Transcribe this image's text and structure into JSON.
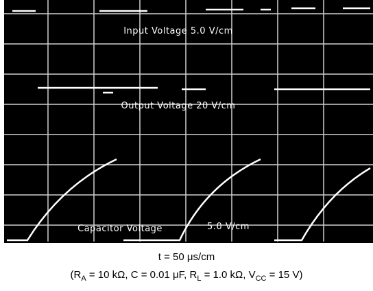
{
  "scope": {
    "labels": {
      "input": "Input Voltage 5.0 V/cm",
      "output": "Output Voltage 20 V/cm",
      "capacitor": "Capacitor Voltage",
      "capacitor_scale": "5.0 V/cm"
    }
  },
  "caption": {
    "line1": "t = 50 μs/cm",
    "line2": [
      "(R",
      "A",
      " = 10 kΩ, C = 0.01 μF, R",
      "L",
      " = 1.0 kΩ, V",
      "CC",
      " = 15 V)"
    ]
  }
}
